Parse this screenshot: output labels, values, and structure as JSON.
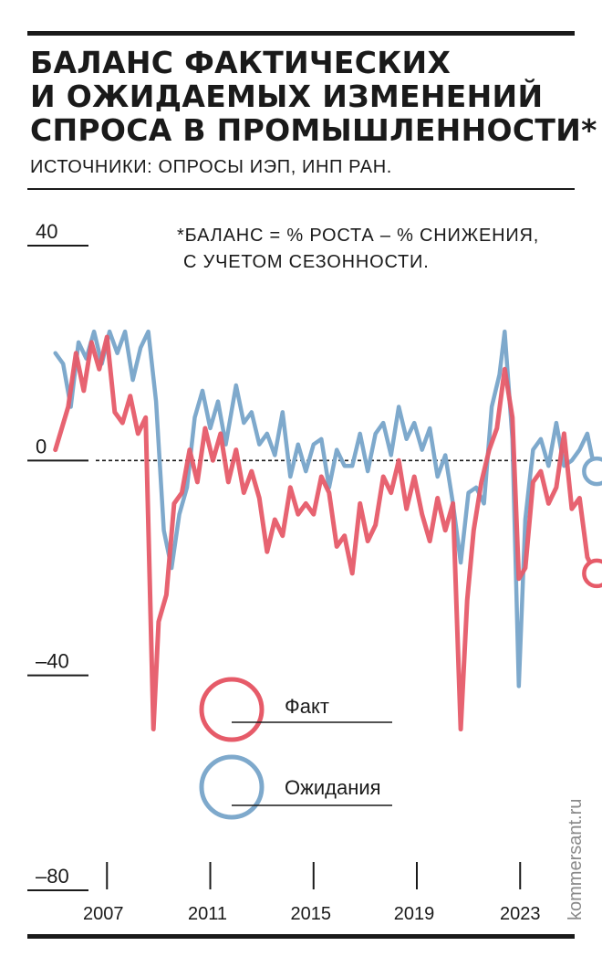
{
  "title_lines": [
    "БАЛАНС ФАКТИЧЕСКИХ",
    "И ОЖИДАЕМЫХ ИЗМЕНЕНИЙ",
    "СПРОСА В ПРОМЫШЛЕННОСТИ*"
  ],
  "source": "ИСТОЧНИКИ: ОПРОСЫ ИЭП, ИНП РАН.",
  "note_lines": [
    "*БАЛАНС = % РОСТА – % СНИЖЕНИЯ,",
    "С УЧЕТОМ СЕЗОННОСТИ."
  ],
  "credit": "kommersant.ru",
  "colors": {
    "fact": "#e65b69",
    "expect": "#7ea9cc",
    "ink": "#1a1a1a",
    "muted": "#8a8a8a"
  },
  "chart_data": {
    "type": "line",
    "title": "БАЛАНС ФАКТИЧЕСКИХ И ОЖИДАЕМЫХ ИЗМЕНЕНИЙ СПРОСА В ПРОМЫШЛЕННОСТИ*",
    "xlabel": "",
    "ylabel": "",
    "xlim": [
      2004.8,
      2026.7
    ],
    "ylim": [
      -80,
      40
    ],
    "y_ticks": [
      40,
      0,
      -40,
      -80
    ],
    "y_tick_labels": [
      "40",
      "0",
      "–40",
      "–80"
    ],
    "x_ticks": [
      2007,
      2011,
      2015,
      2019,
      2023
    ],
    "zero_line": "dashed",
    "grid": false,
    "legend": {
      "placement": "lower-left",
      "entries": [
        "Факт",
        "Ожидания"
      ]
    },
    "series": [
      {
        "name": "Факт",
        "color": "#e65b69",
        "end_marker": "circle",
        "points": [
          [
            2005.0,
            2
          ],
          [
            2005.5,
            10
          ],
          [
            2005.8,
            20
          ],
          [
            2006.1,
            13
          ],
          [
            2006.4,
            22
          ],
          [
            2006.7,
            17
          ],
          [
            2007.0,
            23
          ],
          [
            2007.3,
            9
          ],
          [
            2007.6,
            7
          ],
          [
            2007.9,
            12
          ],
          [
            2008.2,
            5
          ],
          [
            2008.5,
            8
          ],
          [
            2008.8,
            -50
          ],
          [
            2009.0,
            -30
          ],
          [
            2009.3,
            -25
          ],
          [
            2009.6,
            -8
          ],
          [
            2009.9,
            -6
          ],
          [
            2010.2,
            2
          ],
          [
            2010.5,
            -4
          ],
          [
            2010.8,
            6
          ],
          [
            2011.1,
            0
          ],
          [
            2011.4,
            5
          ],
          [
            2011.7,
            -4
          ],
          [
            2012.0,
            2
          ],
          [
            2012.3,
            -6
          ],
          [
            2012.6,
            -2
          ],
          [
            2012.9,
            -7
          ],
          [
            2013.2,
            -17
          ],
          [
            2013.5,
            -11
          ],
          [
            2013.8,
            -14
          ],
          [
            2014.1,
            -5
          ],
          [
            2014.4,
            -10
          ],
          [
            2014.7,
            -8
          ],
          [
            2015.0,
            -10
          ],
          [
            2015.3,
            -3
          ],
          [
            2015.6,
            -6
          ],
          [
            2015.9,
            -16
          ],
          [
            2016.2,
            -14
          ],
          [
            2016.5,
            -21
          ],
          [
            2016.8,
            -8
          ],
          [
            2017.1,
            -15
          ],
          [
            2017.4,
            -12
          ],
          [
            2017.7,
            -3
          ],
          [
            2018.0,
            -6
          ],
          [
            2018.3,
            0
          ],
          [
            2018.6,
            -9
          ],
          [
            2018.9,
            -3
          ],
          [
            2019.2,
            -10
          ],
          [
            2019.5,
            -15
          ],
          [
            2019.8,
            -7
          ],
          [
            2020.1,
            -13
          ],
          [
            2020.4,
            -8
          ],
          [
            2020.7,
            -50
          ],
          [
            2020.95,
            -26
          ],
          [
            2021.2,
            -13
          ],
          [
            2021.5,
            -4
          ],
          [
            2021.8,
            2
          ],
          [
            2022.1,
            6
          ],
          [
            2022.4,
            17
          ],
          [
            2022.7,
            8
          ],
          [
            2022.95,
            -22
          ],
          [
            2023.2,
            -20
          ],
          [
            2023.5,
            -4
          ],
          [
            2023.8,
            -2
          ],
          [
            2024.1,
            -8
          ],
          [
            2024.4,
            -5
          ],
          [
            2024.7,
            5
          ],
          [
            2025.0,
            -9
          ],
          [
            2025.3,
            -7
          ],
          [
            2025.6,
            -18
          ],
          [
            2025.9,
            -21
          ]
        ]
      },
      {
        "name": "Ожидания",
        "color": "#7ea9cc",
        "end_marker": "circle",
        "points": [
          [
            2005.0,
            20
          ],
          [
            2005.3,
            18
          ],
          [
            2005.6,
            10
          ],
          [
            2005.9,
            22
          ],
          [
            2006.2,
            19
          ],
          [
            2006.5,
            24
          ],
          [
            2006.8,
            18
          ],
          [
            2007.1,
            24
          ],
          [
            2007.4,
            20
          ],
          [
            2007.7,
            24
          ],
          [
            2008.0,
            15
          ],
          [
            2008.3,
            21
          ],
          [
            2008.6,
            24
          ],
          [
            2008.9,
            11
          ],
          [
            2009.2,
            -13
          ],
          [
            2009.5,
            -20
          ],
          [
            2009.8,
            -10
          ],
          [
            2010.1,
            -5
          ],
          [
            2010.4,
            8
          ],
          [
            2010.7,
            13
          ],
          [
            2011.0,
            6
          ],
          [
            2011.3,
            11
          ],
          [
            2011.6,
            3
          ],
          [
            2012.0,
            14
          ],
          [
            2012.3,
            7
          ],
          [
            2012.6,
            9
          ],
          [
            2012.9,
            3
          ],
          [
            2013.2,
            5
          ],
          [
            2013.5,
            1
          ],
          [
            2013.8,
            9
          ],
          [
            2014.1,
            -3
          ],
          [
            2014.4,
            3
          ],
          [
            2014.7,
            -2
          ],
          [
            2015.0,
            3
          ],
          [
            2015.3,
            4
          ],
          [
            2015.6,
            -5
          ],
          [
            2015.9,
            2
          ],
          [
            2016.2,
            -1
          ],
          [
            2016.5,
            -1
          ],
          [
            2016.8,
            5
          ],
          [
            2017.1,
            -2
          ],
          [
            2017.4,
            5
          ],
          [
            2017.7,
            7
          ],
          [
            2018.0,
            1
          ],
          [
            2018.3,
            10
          ],
          [
            2018.6,
            4
          ],
          [
            2018.9,
            7
          ],
          [
            2019.2,
            2
          ],
          [
            2019.5,
            6
          ],
          [
            2019.8,
            -3
          ],
          [
            2020.1,
            1
          ],
          [
            2020.4,
            -8
          ],
          [
            2020.7,
            -19
          ],
          [
            2021.0,
            -6
          ],
          [
            2021.3,
            -5
          ],
          [
            2021.6,
            -8
          ],
          [
            2021.9,
            10
          ],
          [
            2022.2,
            16
          ],
          [
            2022.4,
            24
          ],
          [
            2022.7,
            4
          ],
          [
            2022.95,
            -42
          ],
          [
            2023.2,
            -11
          ],
          [
            2023.5,
            2
          ],
          [
            2023.8,
            4
          ],
          [
            2024.1,
            -1
          ],
          [
            2024.4,
            7
          ],
          [
            2024.7,
            -1
          ],
          [
            2025.0,
            0
          ],
          [
            2025.3,
            2
          ],
          [
            2025.6,
            5
          ],
          [
            2025.9,
            -2
          ]
        ]
      }
    ]
  }
}
